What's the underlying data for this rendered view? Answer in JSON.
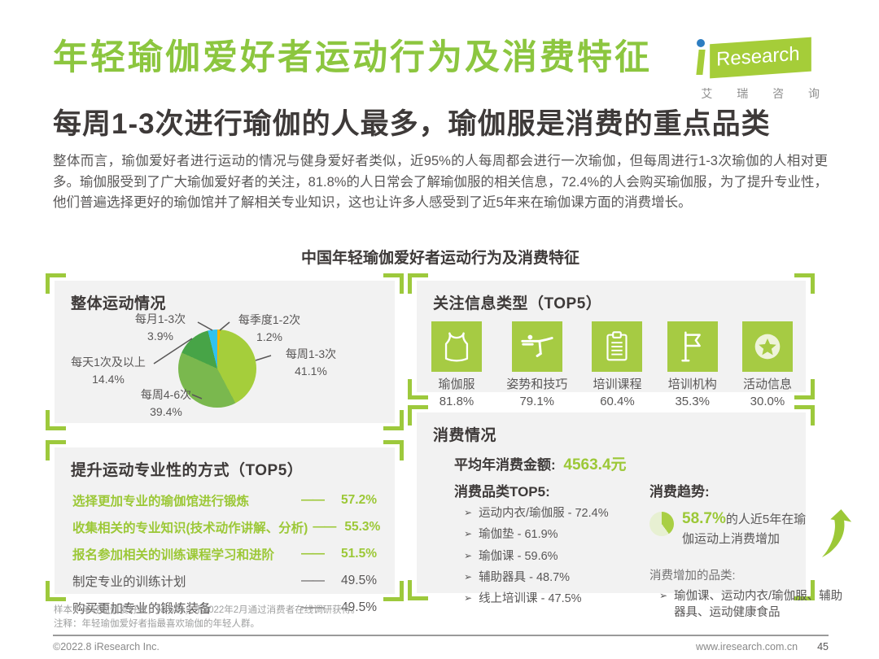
{
  "page": {
    "title": "年轻瑜伽爱好者运动行为及消费特征",
    "subtitle": "每周1-3次进行瑜伽的人最多，瑜伽服是消费的重点品类",
    "intro": "整体而言，瑜伽爱好者进行运动的情况与健身爱好者类似，近95%的人每周都会进行一次瑜伽，但每周进行1-3次瑜伽的人相对更多。瑜伽服受到了广大瑜伽爱好者的关注，81.8%的人日常会了解瑜伽服的相关信息，72.4%的人会购买瑜伽服，为了提升专业性，他们普遍选择更好的瑜伽馆并了解相关专业知识，这也让许多人感受到了近5年来在瑜伽课方面的消费增长。",
    "figure_title": "中国年轻瑜伽爱好者运动行为及消费特征"
  },
  "logo": {
    "name": "Research",
    "cn": "艾 瑞 咨 询"
  },
  "panels": {
    "overall": {
      "title": "整体运动情况"
    },
    "methods": {
      "title": "提升运动专业性的方式（TOP5）"
    },
    "info": {
      "title": "关注信息类型（TOP5）"
    },
    "consumption": {
      "title": "消费情况",
      "avg_label": "平均年消费金额:",
      "avg_value": "4563.4元",
      "top5_label": "消费品类TOP5:",
      "trend_label": "消费趋势:",
      "trend_pct": "58.7%",
      "trend_text": "的人近5年在瑜伽运动上消费增加",
      "increase_label": "消费增加的品类:"
    }
  },
  "chart_data": [
    {
      "type": "pie",
      "title": "整体运动情况",
      "unit": "%",
      "start_angle": "top",
      "direction": "clockwise",
      "segments": [
        {
          "label": "每季度1-2次",
          "value": 1.2,
          "pct": "1.2%",
          "color": "#f2b600"
        },
        {
          "label": "每周1-3次",
          "value": 41.1,
          "pct": "41.1%",
          "color": "#a5ce3b"
        },
        {
          "label": "每周4-6次",
          "value": 39.4,
          "pct": "39.4%",
          "color": "#7ab84e"
        },
        {
          "label": "每天1次及以上",
          "value": 14.4,
          "pct": "14.4%",
          "color": "#47a447"
        },
        {
          "label": "每月1-3次",
          "value": 3.9,
          "pct": "3.9%",
          "color": "#30c2ee"
        }
      ]
    },
    {
      "type": "bar",
      "title": "提升运动专业性的方式（TOP5）",
      "unit": "%",
      "items": [
        {
          "label": "选择更加专业的瑜伽馆进行锻炼",
          "value": 57.2,
          "pct": "57.2%",
          "highlight": true
        },
        {
          "label": "收集相关的专业知识(技术动作讲解、分析)",
          "value": 55.3,
          "pct": "55.3%",
          "highlight": true
        },
        {
          "label": "报名参加相关的训练课程学习和进阶",
          "value": 51.5,
          "pct": "51.5%",
          "highlight": true
        },
        {
          "label": "制定专业的训练计划",
          "value": 49.5,
          "pct": "49.5%",
          "highlight": false
        },
        {
          "label": "购买更加专业的锻炼装备",
          "value": 49.5,
          "pct": "49.5%",
          "highlight": false
        }
      ]
    },
    {
      "type": "table",
      "title": "关注信息类型（TOP5）",
      "unit": "%",
      "items": [
        {
          "label": "瑜伽服",
          "value": 81.8,
          "pct": "81.8%",
          "icon": "tank-top-icon"
        },
        {
          "label": "姿势和技巧",
          "value": 79.1,
          "pct": "79.1%",
          "icon": "yoga-pose-icon"
        },
        {
          "label": "培训课程",
          "value": 60.4,
          "pct": "60.4%",
          "icon": "clipboard-icon"
        },
        {
          "label": "培训机构",
          "value": 35.3,
          "pct": "35.3%",
          "icon": "flag-icon"
        },
        {
          "label": "活动信息",
          "value": 30.0,
          "pct": "30.0%",
          "icon": "star-circle-icon"
        }
      ]
    },
    {
      "type": "table",
      "title": "消费情况",
      "average_annual_spend": "4563.4元",
      "top5": [
        {
          "label": "运动内衣/瑜伽服",
          "value": 72.4,
          "pct": "72.4%"
        },
        {
          "label": "瑜伽垫",
          "value": 61.9,
          "pct": "61.9%"
        },
        {
          "label": "瑜伽课",
          "value": 59.6,
          "pct": "59.6%"
        },
        {
          "label": "辅助器具",
          "value": 48.7,
          "pct": "48.7%"
        },
        {
          "label": "线上培训课",
          "value": 47.5,
          "pct": "47.5%"
        }
      ],
      "trend": {
        "pct": "58.7%",
        "value": 58.7,
        "text": "的人近5年在瑜伽运动上消费增加",
        "increase_categories": "瑜伽课、运动内衣/瑜伽服、辅助器具、运动健康食品"
      }
    }
  ],
  "footer": {
    "note1": "样本：年轻瑜伽爱好者，N=584；于2022年2月通过消费者在线调研获得。",
    "note2": "注释：年轻瑜伽爱好者指最喜欢瑜伽的年轻人群。",
    "copyright": "©2022.8 iResearch Inc.",
    "site": "www.iresearch.com.cn",
    "page": "45"
  },
  "misc": {
    "dash": "——",
    "marker": "➢",
    "sep": " - "
  },
  "colors": {
    "accent_green": "#9cc837",
    "title_green": "#8cc63f",
    "icon_green": "#a6cb43",
    "panel_bg": "#f2f2f2",
    "text_dark": "#3e3a39",
    "text_gray": "#595757",
    "note_gray": "#9fa0a0",
    "logo_blue": "#2d7dc1"
  }
}
